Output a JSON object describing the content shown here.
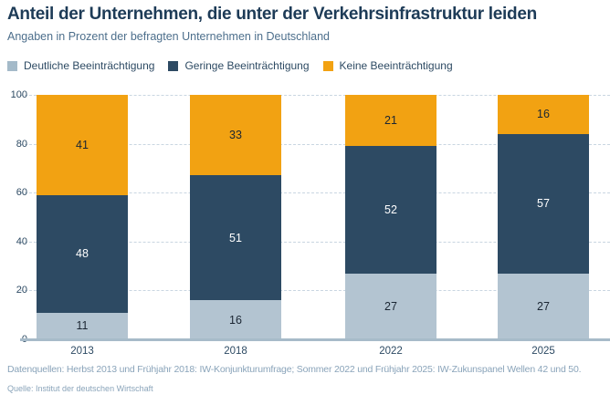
{
  "title": "Anteil der Unternehmen, die unter der Verkehrsinfrastruktur leiden",
  "subtitle": "Angaben in Prozent der befragten Unternehmen in Deutschland",
  "legend": [
    {
      "label": "Deutliche Beeinträchtigung",
      "color": "#a4bac9"
    },
    {
      "label": "Geringe Beeinträchtigung",
      "color": "#2d4a63"
    },
    {
      "label": "Keine Beeinträchtigung",
      "color": "#f2a212"
    }
  ],
  "chart_data": {
    "type": "bar",
    "stacked": true,
    "title": "Anteil der Unternehmen, die unter der Verkehrsinfrastruktur leiden",
    "subtitle": "Angaben in Prozent der befragten Unternehmen in Deutschland",
    "categories": [
      "2013",
      "2018",
      "2022",
      "2025"
    ],
    "series": [
      {
        "name": "Deutliche Beeinträchtigung",
        "color": "#b3c4d1",
        "label_color": "#1b2633",
        "values": [
          11,
          16,
          27,
          27
        ]
      },
      {
        "name": "Geringe Beeinträchtigung",
        "color": "#2d4a63",
        "label_color": "#ffffff",
        "values": [
          48,
          51,
          52,
          57
        ]
      },
      {
        "name": "Keine Beeinträchtigung",
        "color": "#f2a212",
        "label_color": "#1b2633",
        "values": [
          41,
          33,
          21,
          16
        ]
      }
    ],
    "y_ticks": [
      0,
      20,
      40,
      60,
      80,
      100
    ],
    "ylim": [
      0,
      100
    ],
    "xlabel": "",
    "ylabel": "",
    "grid": "horizontal-dashed",
    "legend_position": "top",
    "colors": {
      "grid": "#c9d6e1",
      "baseline": "#a7bbc9",
      "axis_text": "#2d4a63",
      "title_text": "#1d3b57",
      "subtitle_text": "#4d6f8c",
      "footer_text": "#8aa4ba"
    }
  },
  "footer": {
    "sources": "Datenquellen: Herbst 2013 und Frühjahr 2018: IW-Konjunkturumfrage; Sommer 2022 und Frühjahr 2025: IW-Zukunspanel Wellen 42 und 50.",
    "credit": "Quelle: Institut der deutschen Wirtschaft"
  }
}
